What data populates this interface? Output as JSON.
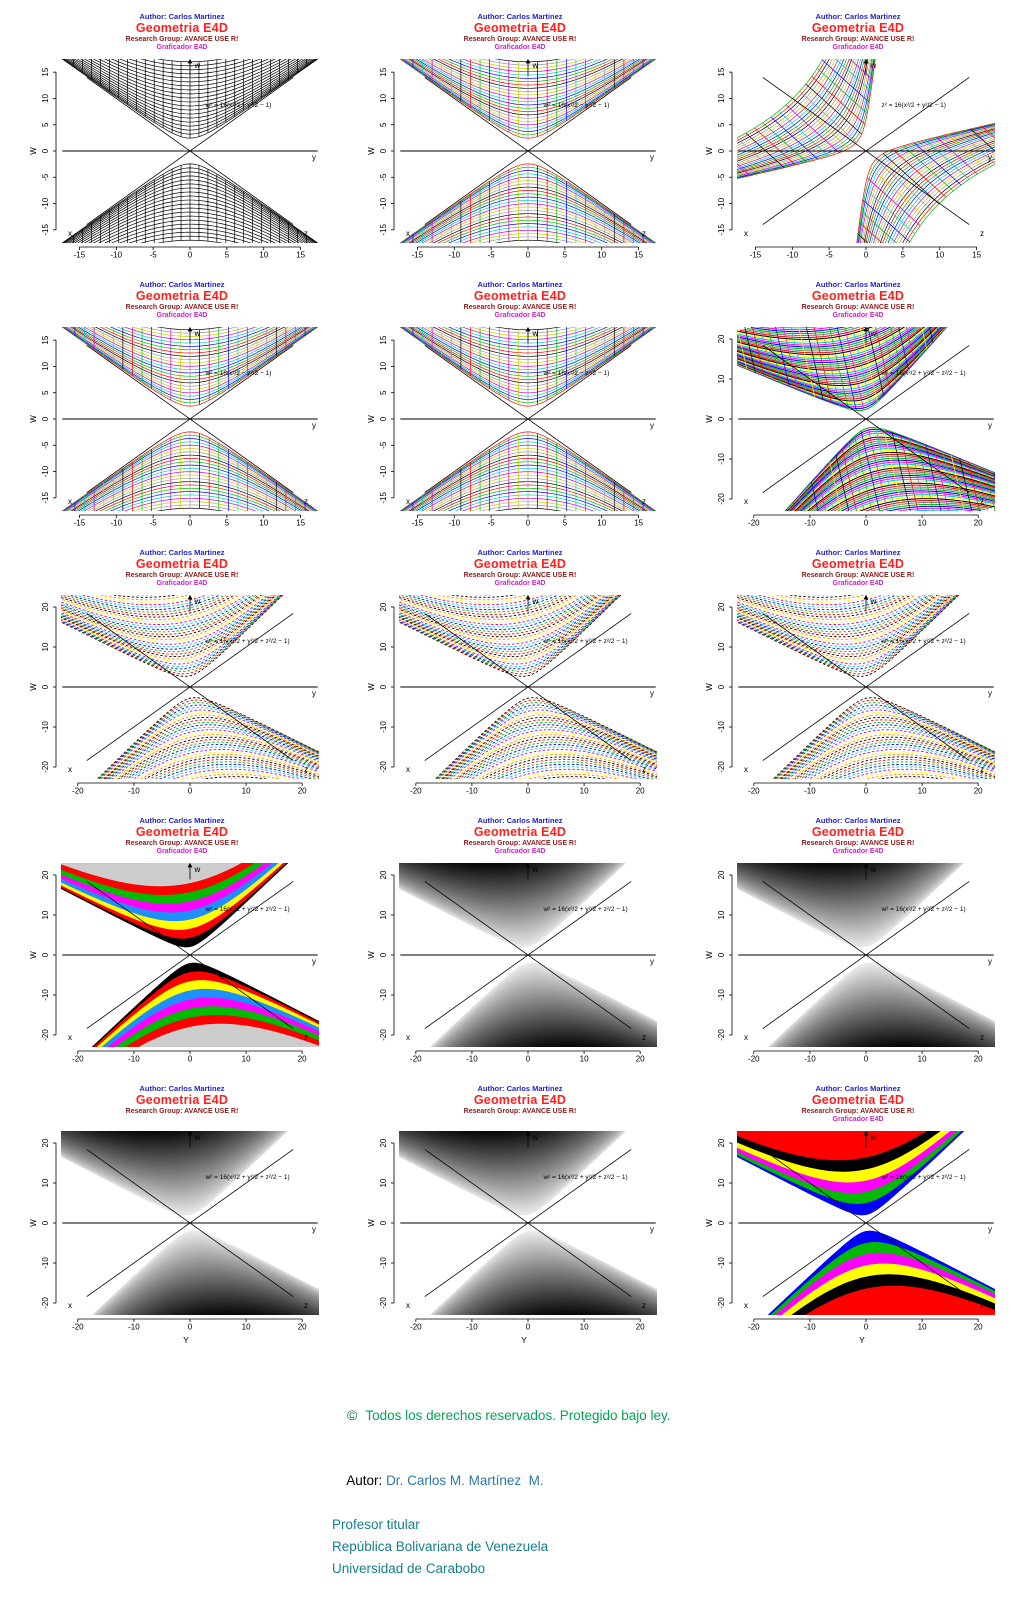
{
  "page": {
    "background": "#ffffff"
  },
  "shared": {
    "author": "Author: Carlos Martinez",
    "title": "Geometria E4D",
    "research": "Research Group: AVANCE USE R!",
    "grapher": "Graficador E4D",
    "ylabel": "W",
    "corner": {
      "bl": "x",
      "br": "z",
      "right": "y",
      "top": "w"
    },
    "palette": [
      "#ff0000",
      "#00bb00",
      "#0000ff",
      "#00cccc",
      "#cc00cc",
      "#cccc00",
      "#999999",
      "#000000"
    ],
    "colors": {
      "author": "#2222cc",
      "title": "#ff2020",
      "research": "#8b1a1a",
      "grapher": "#cc22cc",
      "axis": "#000000"
    }
  },
  "chart_data": [
    {
      "type": "hyperbolic-surface",
      "formula": "w² = 16(x²/2 − y²/2 − 1)",
      "ticks": [
        -15,
        -10,
        -5,
        0,
        5,
        10,
        15
      ],
      "range": 17.5,
      "style": "mesh-black",
      "rotation": 0,
      "curves": 20,
      "meshSteps": 30,
      "xlabel": "",
      "grapher": true
    },
    {
      "type": "hyperbolic-surface",
      "formula": "w² = 16(x²/2 − y²/2 − 1)",
      "ticks": [
        -15,
        -10,
        -5,
        0,
        5,
        10,
        15
      ],
      "range": 17.5,
      "style": "mesh-color",
      "rotation": 0,
      "curves": 24,
      "meshSteps": 28,
      "xlabel": "",
      "grapher": true
    },
    {
      "type": "hyperbolic-surface",
      "formula": "z² = 16(x²/2 + y²/2 − 1)",
      "ticks": [
        -15,
        -10,
        -5,
        0,
        5,
        10,
        15
      ],
      "range": 17.5,
      "style": "mesh-color",
      "rotation": -48,
      "curves": 26,
      "meshSteps": 28,
      "xlabel": "",
      "grapher": true
    },
    {
      "type": "hyperbolic-surface",
      "formula": "w² = 16(x²/2 − z²/2 − 1)",
      "ticks": [
        -15,
        -10,
        -5,
        0,
        5,
        10,
        15
      ],
      "range": 17.5,
      "style": "mesh-color",
      "rotation": 0,
      "curves": 24,
      "meshSteps": 28,
      "xlabel": "",
      "grapher": true
    },
    {
      "type": "hyperbolic-surface",
      "formula": "w² = 16(x²/2 − z²/2 − 1)",
      "ticks": [
        -15,
        -10,
        -5,
        0,
        5,
        10,
        15
      ],
      "range": 17.5,
      "style": "mesh-color",
      "rotation": 0,
      "curves": 24,
      "meshSteps": 28,
      "xlabel": "",
      "grapher": true
    },
    {
      "type": "hyperbolic-surface",
      "formula": "w² = 16(x²/2 + y²/2 − z²/2 − 1)",
      "ticks": [
        -20,
        -10,
        0,
        10,
        20
      ],
      "range": 23,
      "style": "mesh-dense",
      "rotation": -13,
      "curves": 46,
      "meshSteps": 36,
      "xlabel": "",
      "grapher": true,
      "palette": [
        "#00bb00",
        "#0000ff",
        "#ff00ff",
        "#00cccc",
        "#ffff00",
        "#000000",
        "#ff0000",
        "#7f7f7f"
      ]
    },
    {
      "type": "hyperbolic-surface",
      "formula": "w² = 16(x²/2 + y²/2 + z²/2 − 1)",
      "ticks": [
        -20,
        -10,
        0,
        10,
        20
      ],
      "range": 23,
      "style": "hatch",
      "rotation": -9,
      "curves": 34,
      "xlabel": "",
      "grapher": true,
      "palette": [
        "#000000",
        "#ff0000",
        "#00bb00",
        "#0000ff",
        "#00cccc",
        "#cc00cc",
        "#ffff00",
        "#ff8800"
      ]
    },
    {
      "type": "hyperbolic-surface",
      "formula": "w² = 16(x²/2 + y²/2 + z²/2 − 1)",
      "ticks": [
        -20,
        -10,
        0,
        10,
        20
      ],
      "range": 23,
      "style": "hatch",
      "rotation": -9,
      "curves": 34,
      "xlabel": "",
      "grapher": true,
      "palette": [
        "#000000",
        "#ff0000",
        "#00bb00",
        "#0000ff",
        "#00cccc",
        "#cc00cc",
        "#ffff00",
        "#ff8800"
      ]
    },
    {
      "type": "hyperbolic-surface",
      "formula": "w² = 16(x²/2 + y²/2 + z²/2 − 1)",
      "ticks": [
        -20,
        -10,
        0,
        10,
        20
      ],
      "range": 23,
      "style": "hatch",
      "rotation": -9,
      "curves": 34,
      "xlabel": "",
      "grapher": true,
      "palette": [
        "#000000",
        "#ff0000",
        "#00bb00",
        "#0000ff",
        "#00cccc",
        "#cc00cc",
        "#ffff00",
        "#ff8800"
      ]
    },
    {
      "type": "hyperbolic-surface",
      "formula": "w² = 16(x²/2 + y²/2 + z²/2 − 1)",
      "ticks": [
        -20,
        -10,
        0,
        10,
        20
      ],
      "range": 23,
      "style": "solid-bands",
      "rotation": -8,
      "curves": 130,
      "xlabel": "",
      "grapher": true,
      "bands": [
        "#000000",
        "#ff0000",
        "#ffff00",
        "#1e90ff",
        "#ff00ff",
        "#00bb00",
        "#ff0000",
        "#cccccc",
        "#cccccc",
        "#cccccc"
      ]
    },
    {
      "type": "hyperbolic-surface",
      "formula": "w² = 16(x²/2 + y²/2 + z²/2 − 1)",
      "ticks": [
        -20,
        -10,
        0,
        10,
        20
      ],
      "range": 23,
      "style": "solid-gray",
      "rotation": -8,
      "curves": 130,
      "xlabel": "",
      "grapher": true
    },
    {
      "type": "hyperbolic-surface",
      "formula": "w² = 16(x²/2 + y²/2 + z²/2 − 1)",
      "ticks": [
        -20,
        -10,
        0,
        10,
        20
      ],
      "range": 23,
      "style": "solid-gray",
      "rotation": -8,
      "curves": 130,
      "xlabel": "",
      "grapher": true
    },
    {
      "type": "hyperbolic-surface",
      "formula": "w² = 16(x²/2 + y²/2 + z²/2 − 1)",
      "ticks": [
        -20,
        -10,
        0,
        10,
        20
      ],
      "range": 23,
      "style": "solid-gray",
      "rotation": -8,
      "curves": 130,
      "xlabel": "Y",
      "grapher": false
    },
    {
      "type": "hyperbolic-surface",
      "formula": "w² = 16(x²/2 + y²/2 + z²/2 − 1)",
      "ticks": [
        -20,
        -10,
        0,
        10,
        20
      ],
      "range": 23,
      "style": "solid-gray",
      "rotation": -8,
      "curves": 130,
      "xlabel": "Y",
      "grapher": false
    },
    {
      "type": "hyperbolic-surface",
      "formula": "w² = 16(x²/2 + y²/2 + z²/2 − 1)",
      "ticks": [
        -20,
        -10,
        0,
        10,
        20
      ],
      "range": 23,
      "style": "solid-bands",
      "rotation": -8,
      "curves": 130,
      "xlabel": "Y",
      "grapher": true,
      "bands": [
        "#0000ff",
        "#00bb00",
        "#ff00ff",
        "#ffff00",
        "#000000",
        "#ff0000",
        "#ff0000",
        "#ff0000"
      ]
    }
  ],
  "footer": {
    "copyright_symbol": "©",
    "rights": "Todos los derechos reservados. Protegido bajo ley.",
    "autor_label": "Autor:",
    "autor_name": "Dr. Carlos M. Martínez  M.",
    "line3": "Profesor titular",
    "line4": "República Bolivariana de Venezuela",
    "line5": "Universidad de Carabobo",
    "rights_color": "#00a550",
    "copy_color": "#0a6b4f",
    "text_color": "#17808c",
    "name_color": "#2e78a8"
  }
}
